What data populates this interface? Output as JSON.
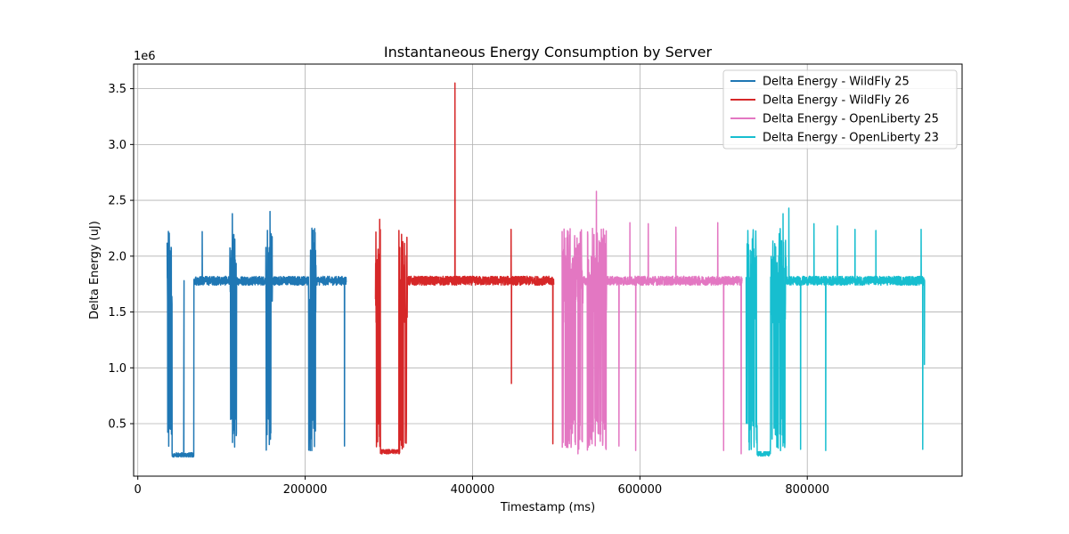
{
  "chart_data": {
    "type": "line",
    "title": "Instantaneous Energy Consumption by Server",
    "xlabel": "Timestamp (ms)",
    "ylabel": "Delta Energy (uJ)",
    "y_offset_label": "1e6",
    "xlim": [
      -5000,
      985000
    ],
    "ylim": [
      30000,
      3720000
    ],
    "x_ticks": [
      0,
      200000,
      400000,
      600000,
      800000
    ],
    "x_tick_labels": [
      "0",
      "200000",
      "400000",
      "600000",
      "800000"
    ],
    "y_ticks": [
      500000,
      1000000,
      1500000,
      2000000,
      2500000,
      3000000,
      3500000
    ],
    "y_tick_labels": [
      "0.5",
      "1.0",
      "1.5",
      "2.0",
      "2.5",
      "3.0",
      "3.5"
    ],
    "grid": true,
    "legend_position": "top-right",
    "series": [
      {
        "name": "Delta Energy - WildFly 25",
        "color": "#1f77b4",
        "x_range": [
          35000,
          249000
        ],
        "baseline": 1780000,
        "low_segments": [
          [
            41000,
            67000,
            220000
          ]
        ],
        "bursts": [
          [
            35000,
            41000
          ],
          [
            110000,
            118000
          ],
          [
            153000,
            161000
          ],
          [
            204000,
            213000
          ]
        ],
        "spikes": [
          [
            55000,
            1150000
          ],
          [
            77000,
            2220000
          ],
          [
            113000,
            2380000
          ],
          [
            158000,
            2400000
          ],
          [
            208000,
            2250000
          ],
          [
            247000,
            300000
          ]
        ]
      },
      {
        "name": "Delta Energy - WildFly 26",
        "color": "#d62728",
        "x_range": [
          284000,
          497000
        ],
        "baseline": 1780000,
        "low_segments": [
          [
            290000,
            315000,
            250000
          ]
        ],
        "bursts": [
          [
            284000,
            290000
          ],
          [
            313000,
            322000
          ]
        ],
        "spikes": [
          [
            289000,
            2330000
          ],
          [
            312000,
            2230000
          ],
          [
            379000,
            3550000
          ],
          [
            446000,
            2240000
          ],
          [
            446500,
            860000
          ],
          [
            496000,
            320000
          ]
        ]
      },
      {
        "name": "Delta Energy - OpenLiberty 25",
        "color": "#e377c2",
        "x_range": [
          507000,
          722000
        ],
        "baseline": 1780000,
        "low_segments": [],
        "bursts": [
          [
            507000,
            532000
          ],
          [
            537000,
            560000
          ]
        ],
        "spikes": [
          [
            526000,
            230000
          ],
          [
            548000,
            2580000
          ],
          [
            575000,
            300000
          ],
          [
            588000,
            2300000
          ],
          [
            595000,
            260000
          ],
          [
            610000,
            2290000
          ],
          [
            643000,
            2260000
          ],
          [
            693000,
            2300000
          ],
          [
            700000,
            260000
          ],
          [
            721000,
            230000
          ]
        ]
      },
      {
        "name": "Delta Energy - OpenLiberty 23",
        "color": "#17becf",
        "x_range": [
          727000,
          940000
        ],
        "baseline": 1780000,
        "low_segments": [
          [
            738000,
            756000,
            230000
          ]
        ],
        "bursts": [
          [
            727000,
            740000
          ],
          [
            756000,
            775000
          ]
        ],
        "spikes": [
          [
            771000,
            2380000
          ],
          [
            778000,
            2430000
          ],
          [
            792000,
            270000
          ],
          [
            808000,
            2290000
          ],
          [
            822000,
            260000
          ],
          [
            836000,
            2270000
          ],
          [
            857000,
            2240000
          ],
          [
            882000,
            2230000
          ],
          [
            936000,
            2240000
          ],
          [
            938000,
            270000
          ],
          [
            940000,
            1030000
          ]
        ]
      }
    ]
  }
}
